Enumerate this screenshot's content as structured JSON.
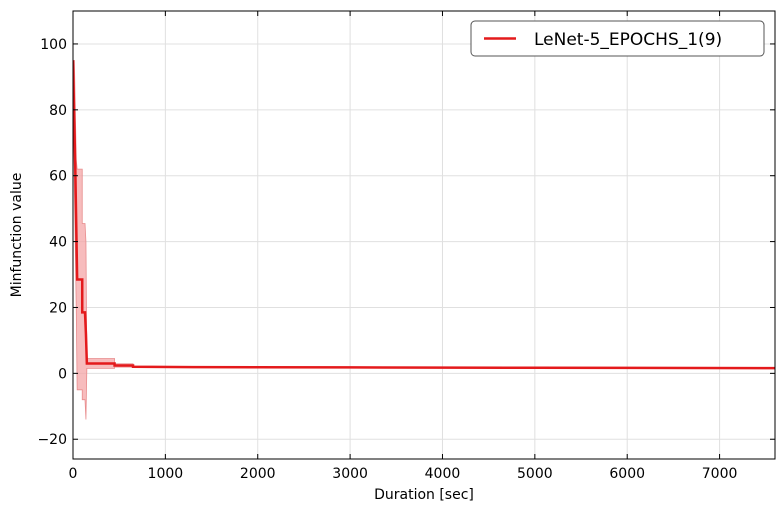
{
  "chart_data": {
    "type": "line",
    "xlabel": "Duration [sec]",
    "ylabel": "Minfunction value",
    "xlim": [
      0,
      7600
    ],
    "ylim": [
      -26,
      110
    ],
    "xticks": [
      0,
      1000,
      2000,
      3000,
      4000,
      5000,
      6000,
      7000
    ],
    "yticks": [
      -20,
      0,
      20,
      40,
      60,
      80,
      100
    ],
    "x_tick_labels": [
      "0",
      "1000",
      "2000",
      "3000",
      "4000",
      "5000",
      "6000",
      "7000"
    ],
    "y_tick_labels": [
      "−20",
      "0",
      "20",
      "40",
      "60",
      "80",
      "100"
    ],
    "grid": true,
    "legend_position": "top-right",
    "series": [
      {
        "name": "LeNet-5_EPOCHS_1(9)",
        "color": "#e41a1c",
        "band_color": "#f4a6a7",
        "points": [
          {
            "x": 0,
            "y": 95,
            "lo": 95,
            "hi": 95
          },
          {
            "x": 15,
            "y": 75,
            "lo": 55,
            "hi": 95
          },
          {
            "x": 25,
            "y": 62,
            "lo": 38,
            "hi": 80
          },
          {
            "x": 35,
            "y": 45,
            "lo": 20,
            "hi": 65
          },
          {
            "x": 45,
            "y": 28.5,
            "lo": -5,
            "hi": 62
          },
          {
            "x": 100,
            "y": 28.5,
            "lo": -5,
            "hi": 62
          },
          {
            "x": 100,
            "y": 18.5,
            "lo": -8,
            "hi": 45.5
          },
          {
            "x": 130,
            "y": 18.5,
            "lo": -8,
            "hi": 45.5
          },
          {
            "x": 140,
            "y": 12,
            "lo": -14,
            "hi": 40
          },
          {
            "x": 150,
            "y": 3,
            "lo": 1.5,
            "hi": 4.5
          },
          {
            "x": 450,
            "y": 3,
            "lo": 1.5,
            "hi": 4.5
          },
          {
            "x": 450,
            "y": 2.4,
            "lo": 1.9,
            "hi": 2.9
          },
          {
            "x": 650,
            "y": 2.4,
            "lo": 1.9,
            "hi": 2.9
          },
          {
            "x": 650,
            "y": 2.0,
            "lo": 1.8,
            "hi": 2.2
          },
          {
            "x": 1300,
            "y": 1.9,
            "lo": 1.8,
            "hi": 2.0
          },
          {
            "x": 3000,
            "y": 1.8,
            "lo": 1.7,
            "hi": 1.9
          },
          {
            "x": 5000,
            "y": 1.7,
            "lo": 1.6,
            "hi": 1.8
          },
          {
            "x": 7600,
            "y": 1.6,
            "lo": 1.5,
            "hi": 1.7
          }
        ]
      }
    ]
  }
}
